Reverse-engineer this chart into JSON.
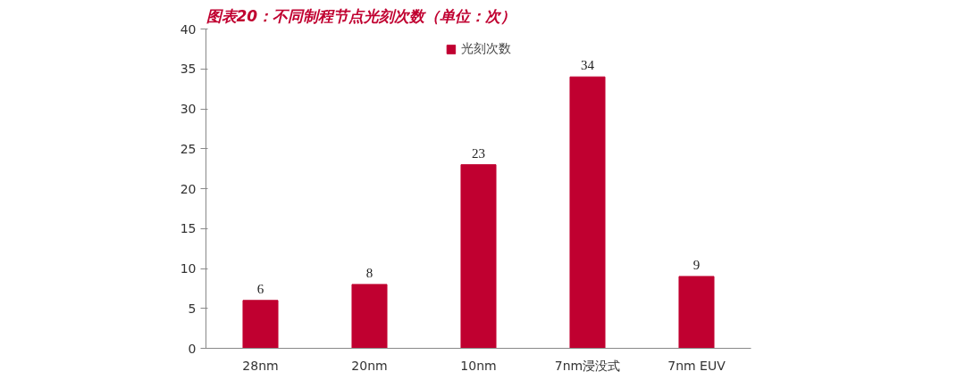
{
  "chart_data": {
    "type": "bar",
    "title": "图表20：不同制程节点光刻次数（单位：次）",
    "categories": [
      "28nm",
      "20nm",
      "10nm",
      "7nm浸没式",
      "7nm EUV"
    ],
    "series": [
      {
        "name": "光刻次数",
        "color": "#c00030",
        "values": [
          6,
          8,
          23,
          34,
          9
        ]
      }
    ],
    "ylim": [
      0,
      40
    ],
    "yticks": [
      0,
      5,
      10,
      15,
      20,
      25,
      30,
      35,
      40
    ],
    "data_labels": true,
    "legend": "top",
    "grid": false
  }
}
